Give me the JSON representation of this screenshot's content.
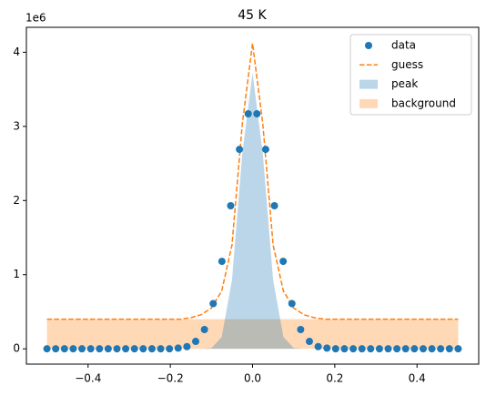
{
  "chart_data": {
    "type": "line",
    "title": "45 K",
    "y_offset_label": "1e6",
    "xlim": [
      -0.55,
      0.55
    ],
    "ylim": [
      -0.2065,
      4.3365
    ],
    "xticks": [
      {
        "value": -0.4,
        "label": "−0.4"
      },
      {
        "value": -0.2,
        "label": "−0.2"
      },
      {
        "value": 0,
        "label": "0.0"
      },
      0.2,
      0.4
    ],
    "yticks": [
      0,
      1,
      2,
      3,
      4
    ],
    "grid": false,
    "legend_loc": "upper right",
    "series": [
      {
        "name": "data",
        "style": "scatter",
        "color": "#1f77b4",
        "x": [
          -0.5,
          -0.4787,
          -0.4574,
          -0.4362,
          -0.4149,
          -0.3936,
          -0.3723,
          -0.3511,
          -0.3298,
          -0.3085,
          -0.2872,
          -0.266,
          -0.2447,
          -0.2234,
          -0.2021,
          -0.1809,
          -0.1596,
          -0.1383,
          -0.117,
          -0.0957,
          -0.0745,
          -0.0532,
          -0.0319,
          -0.0106,
          0.0106,
          0.0319,
          0.0532,
          0.0745,
          0.0957,
          0.117,
          0.1383,
          0.1596,
          0.1809,
          0.2021,
          0.2234,
          0.2447,
          0.266,
          0.2872,
          0.3085,
          0.3298,
          0.3511,
          0.3723,
          0.3936,
          0.4149,
          0.4362,
          0.4574,
          0.4787,
          0.5
        ],
        "values": [
          0,
          0,
          0,
          0,
          0,
          0,
          0,
          0,
          0,
          0,
          0,
          0,
          0,
          0,
          0,
          0.01,
          0.03,
          0.1,
          0.26,
          0.61,
          1.18,
          1.93,
          2.69,
          3.17,
          3.17,
          2.69,
          1.93,
          1.18,
          0.61,
          0.26,
          0.1,
          0.03,
          0.01,
          0,
          0,
          0,
          0,
          0,
          0,
          0,
          0,
          0,
          0,
          0,
          0,
          0,
          0,
          0
        ]
      },
      {
        "name": "guess",
        "style": "dashed",
        "color": "#ff7f0e",
        "x": [
          -0.5,
          -0.475,
          -0.45,
          -0.425,
          -0.4,
          -0.375,
          -0.35,
          -0.325,
          -0.3,
          -0.275,
          -0.25,
          -0.225,
          -0.2,
          -0.175,
          -0.15,
          -0.125,
          -0.1,
          -0.075,
          -0.05,
          -0.025,
          0,
          0.025,
          0.05,
          0.075,
          0.1,
          0.125,
          0.15,
          0.175,
          0.2,
          0.225,
          0.25,
          0.275,
          0.3,
          0.325,
          0.35,
          0.375,
          0.4,
          0.425,
          0.45,
          0.475,
          0.5
        ],
        "values": [
          0.4,
          0.4,
          0.4,
          0.4,
          0.4,
          0.4,
          0.4,
          0.4,
          0.4,
          0.4,
          0.4,
          0.4,
          0.4,
          0.4,
          0.42,
          0.46,
          0.55,
          0.78,
          1.4,
          3.03,
          4.12,
          3.03,
          1.4,
          0.78,
          0.55,
          0.46,
          0.42,
          0.4,
          0.4,
          0.4,
          0.4,
          0.4,
          0.4,
          0.4,
          0.4,
          0.4,
          0.4,
          0.4,
          0.4,
          0.4,
          0.4
        ]
      },
      {
        "name": "peak",
        "style": "fill",
        "color": "#1f77b4",
        "x": [
          -0.5,
          -0.125,
          -0.1,
          -0.075,
          -0.05,
          -0.025,
          0,
          0.025,
          0.05,
          0.075,
          0.1,
          0.125,
          0.5
        ],
        "values": [
          0,
          0,
          0.01,
          0.16,
          0.93,
          2.63,
          3.72,
          2.63,
          0.93,
          0.16,
          0.01,
          0,
          0
        ]
      },
      {
        "name": "background",
        "style": "fill",
        "color": "#ff7f0e",
        "x": [
          -0.5,
          0.5
        ],
        "values": [
          0.4,
          0.4
        ]
      }
    ]
  }
}
